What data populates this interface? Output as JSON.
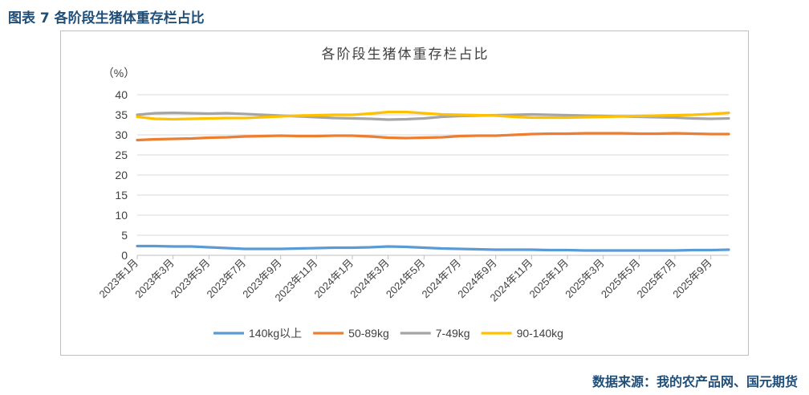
{
  "figure": {
    "caption": "图表 7  各阶段生猪体重存栏占比",
    "source": "数据来源：我的农产品网、国元期货"
  },
  "chart_data": {
    "type": "line",
    "title": "各阶段生猪体重存栏占比",
    "ylabel": "（%）",
    "xlabel": "",
    "ylim": [
      0,
      40
    ],
    "yticks": [
      0,
      5,
      10,
      15,
      20,
      25,
      30,
      35,
      40
    ],
    "grid": "horizontal",
    "legend": "bottom",
    "x_tick_labels": [
      "2023年1月",
      "2023年3月",
      "2023年5月",
      "2023年7月",
      "2023年9月",
      "2023年11月",
      "2024年1月",
      "2024年3月",
      "2024年5月",
      "2024年7月",
      "2024年9月",
      "2024年11月",
      "2025年1月",
      "2025年3月",
      "2025年5月",
      "2025年7月",
      "2025年9月"
    ],
    "x_tick_positions": [
      0,
      2,
      4,
      6,
      8,
      10,
      12,
      14,
      16,
      18,
      20,
      22,
      24,
      26,
      28,
      30,
      32
    ],
    "n_points": 34,
    "series": [
      {
        "name": "140kg以上",
        "color": "#5b9bd5",
        "values": [
          2.3,
          2.3,
          2.2,
          2.2,
          2.0,
          1.8,
          1.6,
          1.6,
          1.6,
          1.7,
          1.8,
          1.9,
          1.9,
          2.0,
          2.2,
          2.1,
          1.9,
          1.7,
          1.6,
          1.5,
          1.4,
          1.4,
          1.4,
          1.3,
          1.3,
          1.2,
          1.2,
          1.2,
          1.2,
          1.2,
          1.2,
          1.3,
          1.3,
          1.4
        ]
      },
      {
        "name": "50-89kg",
        "color": "#ed7d31",
        "values": [
          28.7,
          28.9,
          29.0,
          29.1,
          29.3,
          29.4,
          29.6,
          29.7,
          29.8,
          29.7,
          29.7,
          29.8,
          29.8,
          29.6,
          29.3,
          29.2,
          29.3,
          29.4,
          29.7,
          29.8,
          29.8,
          30.0,
          30.2,
          30.3,
          30.3,
          30.4,
          30.4,
          30.4,
          30.3,
          30.3,
          30.4,
          30.3,
          30.2,
          30.2
        ]
      },
      {
        "name": "7-49kg",
        "color": "#a5a5a5",
        "values": [
          35.0,
          35.4,
          35.5,
          35.4,
          35.3,
          35.4,
          35.2,
          35.0,
          34.8,
          34.6,
          34.4,
          34.2,
          34.1,
          34.0,
          33.8,
          33.9,
          34.1,
          34.5,
          34.7,
          34.8,
          34.9,
          35.0,
          35.1,
          35.0,
          34.9,
          34.8,
          34.7,
          34.6,
          34.5,
          34.4,
          34.3,
          34.1,
          34.0,
          34.1
        ]
      },
      {
        "name": "90-140kg",
        "color": "#ffc000",
        "values": [
          34.5,
          34.0,
          33.9,
          34.0,
          34.1,
          34.2,
          34.2,
          34.4,
          34.6,
          34.8,
          34.9,
          35.0,
          35.0,
          35.3,
          35.7,
          35.7,
          35.4,
          35.1,
          35.0,
          34.9,
          34.8,
          34.5,
          34.3,
          34.3,
          34.3,
          34.4,
          34.5,
          34.6,
          34.7,
          34.8,
          34.9,
          35.0,
          35.2,
          35.5
        ]
      }
    ]
  }
}
